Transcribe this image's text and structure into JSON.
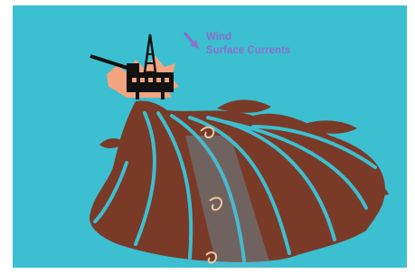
{
  "labels": {
    "wind": "Wind",
    "currents": "Surface Currents"
  }
}
